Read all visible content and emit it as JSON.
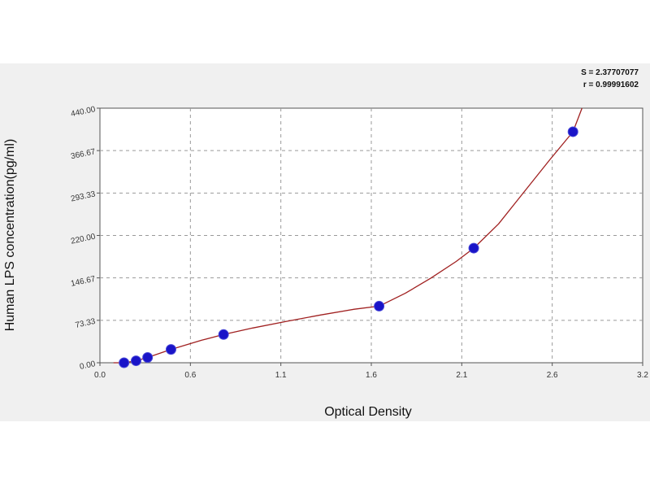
{
  "chart_data": {
    "type": "scatter",
    "title": "",
    "xlabel": "Optical Density",
    "ylabel": "Human LPS concentration(pg/ml)",
    "xlim": [
      0.0,
      3.2
    ],
    "ylim": [
      0,
      440
    ],
    "x_ticks": [
      "0.0",
      "0.6",
      "1.1",
      "1.6",
      "2.1",
      "2.6",
      "3.2"
    ],
    "y_ticks": [
      "0.00",
      "73.33",
      "146.67",
      "220.00",
      "293.33",
      "366.67",
      "440.00"
    ],
    "grid": true,
    "stats": [
      "S = 2.37707077",
      "r = 0.99991602"
    ],
    "series": [
      {
        "x": [
          0.142,
          0.213,
          0.281,
          0.419,
          0.729,
          1.646,
          2.204,
          2.789
        ],
        "y": [
          0.0,
          3.4,
          9.1,
          23.0,
          48.8,
          97.8,
          198.1,
          399.3
        ]
      }
    ],
    "fit_curve": {
      "x": [
        0.08,
        0.142,
        0.213,
        0.281,
        0.419,
        0.6,
        0.729,
        0.9,
        1.1,
        1.3,
        1.5,
        1.646,
        1.8,
        1.95,
        2.1,
        2.204,
        2.35,
        2.5,
        2.65,
        2.789,
        2.85
      ],
      "y": [
        -4,
        0.0,
        3.4,
        9.1,
        23.0,
        39,
        48.8,
        60,
        71.5,
        82.5,
        92.5,
        97.8,
        120,
        146,
        175,
        198.1,
        240,
        295,
        350,
        399.3,
        446
      ]
    },
    "colors": {
      "point": "#1a14c8",
      "curve": "#a02020",
      "grid": "#9a9a9a",
      "plot_bg": "#ffffff",
      "panel_bg": "#f0f0f0"
    }
  }
}
